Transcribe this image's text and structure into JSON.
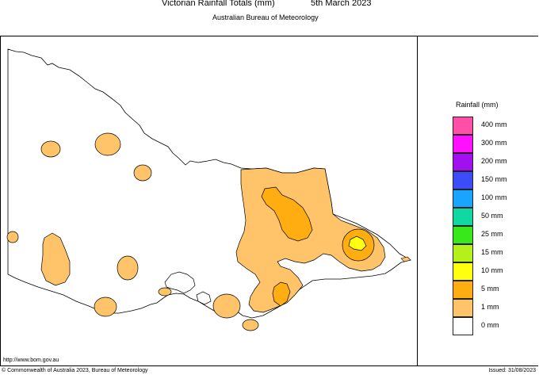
{
  "header": {
    "title": "Victorian Rainfall Totals (mm)",
    "date": "5th March 2023",
    "subtitle": "Australian Bureau of Meteorology"
  },
  "legend": {
    "title": "Rainfall (mm)",
    "items": [
      {
        "label": "400 mm",
        "color": "#ff4fa6"
      },
      {
        "label": "300 mm",
        "color": "#ff10ff"
      },
      {
        "label": "200 mm",
        "color": "#a310f0"
      },
      {
        "label": "150 mm",
        "color": "#3c4cf6"
      },
      {
        "label": "100 mm",
        "color": "#19a4ff"
      },
      {
        "label": "50 mm",
        "color": "#10d8a0"
      },
      {
        "label": "25 mm",
        "color": "#38e81a"
      },
      {
        "label": "15 mm",
        "color": "#b6f01a"
      },
      {
        "label": "10 mm",
        "color": "#ffff10"
      },
      {
        "label": "5 mm",
        "color": "#ffad10"
      },
      {
        "label": "1 mm",
        "color": "#ffc46a"
      },
      {
        "label": "0 mm",
        "color": "#ffffff"
      }
    ]
  },
  "footer": {
    "url": "http://www.bom.gov.au",
    "copyright": "© Commonwealth of Australia 2023, Bureau of Meteorology",
    "issued": "Issued: 31/08/2023"
  },
  "map": {
    "outline_color": "#000000",
    "fill_1mm": "#ffc46a",
    "fill_5mm": "#ffad10",
    "fill_10mm": "#ffff10"
  }
}
